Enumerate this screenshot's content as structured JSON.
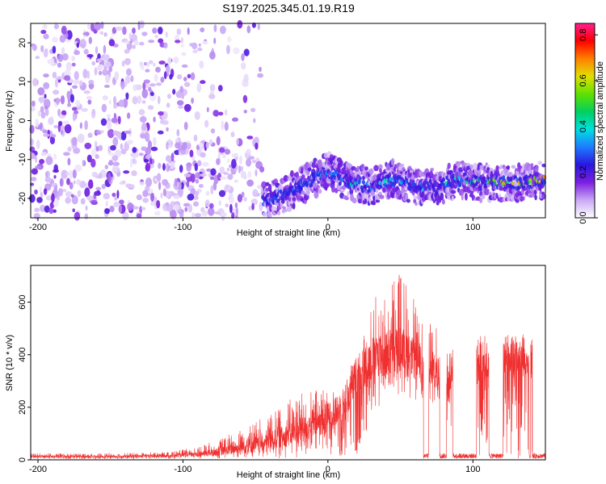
{
  "title": "S197.2025.345.01.19.R19",
  "chart_data": [
    {
      "type": "heatmap",
      "xlabel": "Height of straight line (km)",
      "ylabel": "Frequency (Hz)",
      "xlim": [
        -205,
        150
      ],
      "ylim": [
        -25,
        25
      ],
      "xticks": [
        -200,
        -100,
        0,
        100
      ],
      "yticks": [
        -20,
        -10,
        0,
        10,
        20
      ],
      "colorbar": {
        "label": "Normalized spectral amplitude",
        "range": [
          0.0,
          0.85
        ],
        "ticks": [
          0.0,
          0.2,
          0.4,
          0.6,
          0.8
        ],
        "colormap": [
          "#ffffff",
          "#c9a8f5",
          "#7b1fe0",
          "#2a16e0",
          "#1e7bff",
          "#00e0e0",
          "#00d060",
          "#60e000",
          "#e0e000",
          "#ff8000",
          "#ff0000",
          "#ff2090"
        ]
      },
      "noise_region_x": [
        -205,
        -45
      ],
      "signal_trace": {
        "x": [
          -45,
          -30,
          -15,
          0,
          15,
          30,
          45,
          60,
          75,
          90,
          105,
          120,
          135,
          150
        ],
        "freq": [
          -21,
          -19,
          -16,
          -13,
          -16,
          -17,
          -15,
          -17,
          -17,
          -15,
          -16,
          -16,
          -16,
          -15
        ],
        "peak_amplitude": [
          0.3,
          0.3,
          0.35,
          0.4,
          0.45,
          0.45,
          0.4,
          0.35,
          0.4,
          0.55,
          0.65,
          0.65,
          0.75,
          0.7
        ]
      }
    },
    {
      "type": "line",
      "xlabel": "Height of straight line (km)",
      "ylabel": "SNR (10 * v/v)",
      "xlim": [
        -205,
        150
      ],
      "ylim": [
        0,
        740
      ],
      "xticks": [
        -200,
        -100,
        0,
        100
      ],
      "yticks": [
        0,
        200,
        400,
        600
      ],
      "color": "#f03030",
      "envelope": {
        "x": [
          -205,
          -150,
          -110,
          -90,
          -75,
          -60,
          -45,
          -30,
          -15,
          0,
          10,
          20,
          30,
          40,
          50,
          60,
          70,
          80,
          90,
          100,
          110,
          120,
          130,
          140,
          150
        ],
        "low": [
          3,
          3,
          3,
          3,
          5,
          5,
          5,
          5,
          5,
          5,
          5,
          20,
          150,
          220,
          250,
          220,
          200,
          150,
          100,
          5,
          5,
          5,
          5,
          5,
          5
        ],
        "high": [
          25,
          25,
          30,
          50,
          80,
          120,
          160,
          220,
          260,
          280,
          300,
          420,
          600,
          680,
          720,
          620,
          540,
          470,
          440,
          430,
          420,
          420,
          430,
          430,
          430
        ],
        "typical": [
          12,
          12,
          15,
          20,
          30,
          45,
          60,
          90,
          120,
          160,
          200,
          320,
          380,
          400,
          420,
          380,
          350,
          300,
          250,
          390,
          390,
          390,
          395,
          395,
          395
        ]
      }
    }
  ]
}
